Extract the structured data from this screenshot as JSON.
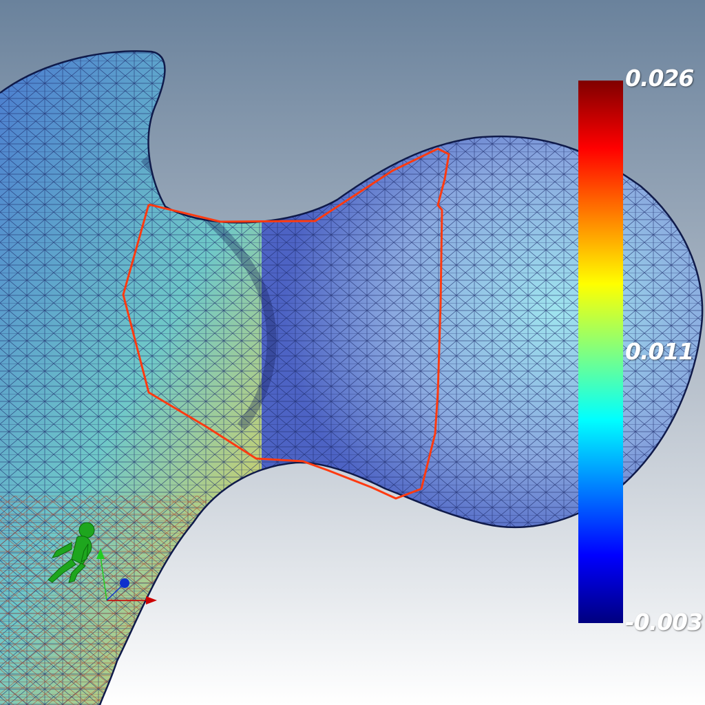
{
  "viewer": {
    "background_top_color": "#6a829c",
    "background_bottom_color": "#ffffff",
    "mesh_edge_color": "#1c2a6a",
    "selection_outline_color": "#ff3a10"
  },
  "scalar_bar": {
    "max_label": "0.026",
    "mid_label": "0.011",
    "min_label": "-0.003",
    "colormap": "jet",
    "colors": [
      "#00007f",
      "#0000ff",
      "#0080ff",
      "#00ffff",
      "#80ff80",
      "#ffff00",
      "#ff8000",
      "#ff0000",
      "#7f0000"
    ]
  },
  "orientation_widget": {
    "figure_icon": "human-figure-icon",
    "axis_x_color": "#cc0000",
    "axis_y_color": "#22cc22",
    "axis_z_color": "#1030cc"
  }
}
